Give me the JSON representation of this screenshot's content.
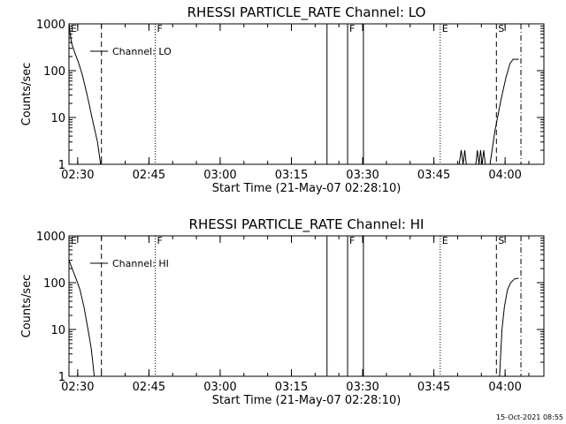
{
  "footer": {
    "timestamp": "15-Oct-2021 08:55"
  },
  "chart_data": [
    {
      "type": "line",
      "title": "RHESSI PARTICLE_RATE Channel: LO",
      "xlabel": "Start Time (21-May-07 02:28:10)",
      "ylabel": "Counts/sec",
      "yscale": "log",
      "ylim": [
        1,
        1000
      ],
      "yticks": [
        "1",
        "10",
        "100",
        "1000"
      ],
      "xlim_minutes_after_start": [
        0,
        100
      ],
      "xticks": [
        "02:30",
        "02:45",
        "03:00",
        "03:15",
        "03:30",
        "03:45",
        "04:00"
      ],
      "legend": "Channel: LO",
      "series": [
        {
          "name": "Channel: LO",
          "segments": [
            [
              [
                "02:28:10",
                1000
              ],
              [
                "02:28:40",
                400
              ],
              [
                "02:29:20",
                250
              ],
              [
                "02:30:10",
                150
              ],
              [
                "02:31:00",
                80
              ],
              [
                "02:32:00",
                30
              ],
              [
                "02:33:00",
                10
              ],
              [
                "02:34:10",
                3
              ],
              [
                "02:34:50",
                1
              ]
            ],
            [
              [
                "03:50:20",
                1
              ],
              [
                "03:50:45",
                2
              ],
              [
                "03:51:10",
                1
              ],
              [
                "03:51:30",
                2
              ],
              [
                "03:51:50",
                1
              ]
            ],
            [
              [
                "03:53:50",
                1
              ],
              [
                "03:54:10",
                2
              ],
              [
                "03:54:30",
                1
              ],
              [
                "03:54:50",
                2
              ],
              [
                "03:55:10",
                1
              ],
              [
                "03:55:30",
                2
              ],
              [
                "03:55:50",
                1
              ]
            ],
            [
              [
                "03:56:50",
                1
              ],
              [
                "03:57:50",
                5
              ],
              [
                "03:59:10",
                25
              ],
              [
                "04:00:10",
                70
              ],
              [
                "04:01:00",
                140
              ],
              [
                "04:01:40",
                175
              ],
              [
                "04:02:50",
                175
              ]
            ]
          ]
        }
      ],
      "markers": [
        {
          "label": "E",
          "time": "02:28:10",
          "style": "solid"
        },
        {
          "label": "",
          "time": "02:35:00",
          "style": "dashed"
        },
        {
          "label": "F",
          "time": "02:46:20",
          "style": "dotted"
        },
        {
          "label": "",
          "time": "03:22:30",
          "style": "solid"
        },
        {
          "label": "F",
          "time": "03:26:50",
          "style": "solid"
        },
        {
          "label": "",
          "time": "03:30:10",
          "style": "solid"
        },
        {
          "label": "E",
          "time": "03:46:20",
          "style": "dotted"
        },
        {
          "label": "S",
          "time": "03:58:10",
          "style": "dashed"
        },
        {
          "label": "",
          "time": "04:03:20",
          "style": "dashdot"
        }
      ]
    },
    {
      "type": "line",
      "title": "RHESSI PARTICLE_RATE Channel: HI",
      "xlabel": "Start Time (21-May-07 02:28:10)",
      "ylabel": "Counts/sec",
      "yscale": "log",
      "ylim": [
        1,
        1000
      ],
      "yticks": [
        "1",
        "10",
        "100",
        "1000"
      ],
      "xlim_minutes_after_start": [
        0,
        100
      ],
      "xticks": [
        "02:30",
        "02:45",
        "03:00",
        "03:15",
        "03:30",
        "03:45",
        "04:00"
      ],
      "legend": "Channel: HI",
      "series": [
        {
          "name": "Channel: HI",
          "segments": [
            [
              [
                "02:28:10",
                300
              ],
              [
                "02:28:50",
                200
              ],
              [
                "02:29:40",
                120
              ],
              [
                "02:30:30",
                70
              ],
              [
                "02:31:20",
                30
              ],
              [
                "02:32:10",
                10
              ],
              [
                "02:32:50",
                4
              ],
              [
                "02:33:30",
                1
              ]
            ],
            [
              [
                "03:58:50",
                1
              ],
              [
                "03:59:20",
                10
              ],
              [
                "03:59:50",
                30
              ],
              [
                "04:00:30",
                70
              ],
              [
                "04:01:10",
                100
              ],
              [
                "04:02:00",
                120
              ],
              [
                "04:02:50",
                125
              ]
            ]
          ]
        }
      ],
      "markers": [
        {
          "label": "E",
          "time": "02:28:10",
          "style": "solid"
        },
        {
          "label": "",
          "time": "02:35:00",
          "style": "dashed"
        },
        {
          "label": "F",
          "time": "02:46:20",
          "style": "dotted"
        },
        {
          "label": "",
          "time": "03:22:30",
          "style": "solid"
        },
        {
          "label": "F",
          "time": "03:26:50",
          "style": "solid"
        },
        {
          "label": "",
          "time": "03:30:10",
          "style": "solid"
        },
        {
          "label": "E",
          "time": "03:46:20",
          "style": "dotted"
        },
        {
          "label": "S",
          "time": "03:58:10",
          "style": "dashed"
        },
        {
          "label": "",
          "time": "04:03:20",
          "style": "dashdot"
        }
      ]
    }
  ]
}
